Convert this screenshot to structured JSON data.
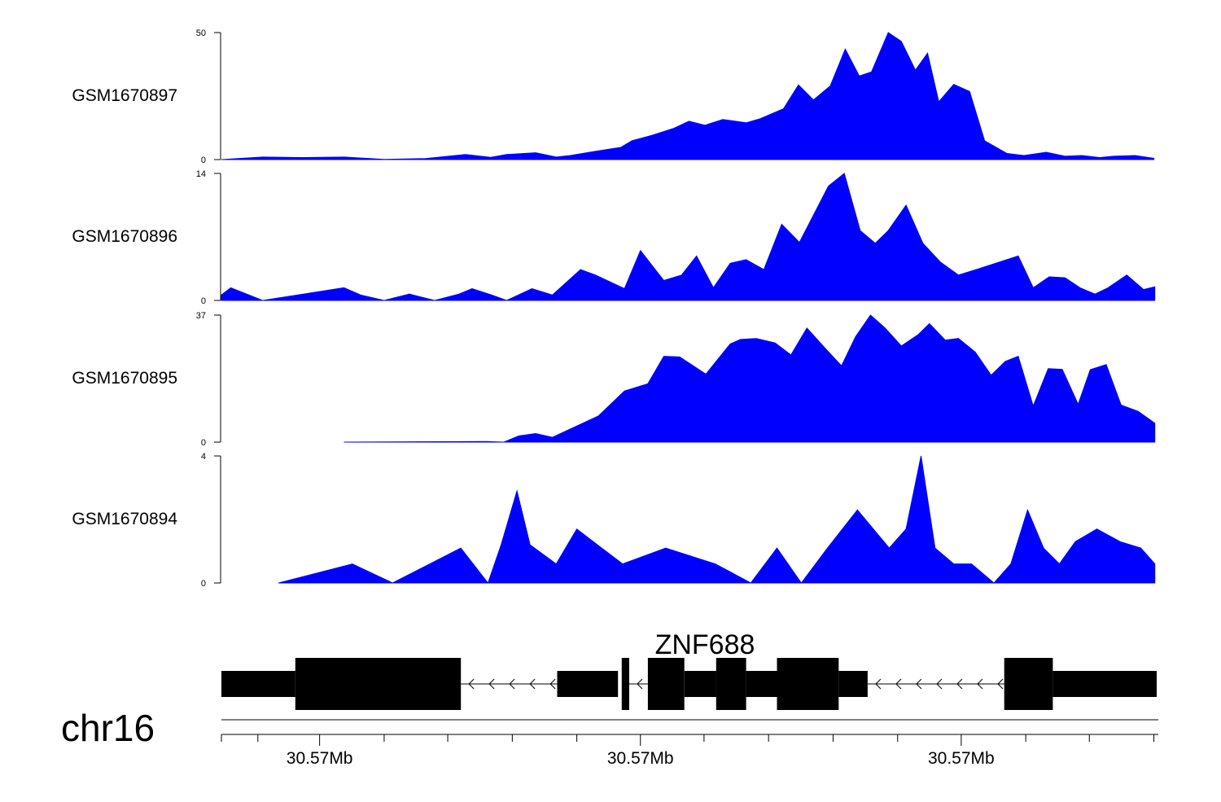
{
  "chart_data": {
    "type": "area",
    "chromosome": "chr16",
    "x_range": [
      0,
      100
    ],
    "fill_color": "#0000ff",
    "gene": {
      "name": "ZNF688",
      "strand": "-",
      "exons": [
        {
          "start": 0.0,
          "end": 7.9,
          "kind": "utr"
        },
        {
          "start": 7.9,
          "end": 25.6,
          "kind": "cds"
        },
        {
          "start": 35.9,
          "end": 42.4,
          "kind": "utr"
        },
        {
          "start": 42.4,
          "end": 43.0,
          "kind": "utr_gap"
        },
        {
          "start": 42.8,
          "end": 43.6,
          "kind": "cds"
        },
        {
          "start": 45.6,
          "end": 49.5,
          "kind": "cds"
        },
        {
          "start": 49.5,
          "end": 52.9,
          "kind": "utr"
        },
        {
          "start": 52.9,
          "end": 56.1,
          "kind": "cds"
        },
        {
          "start": 56.1,
          "end": 59.4,
          "kind": "utr"
        },
        {
          "start": 59.4,
          "end": 66.0,
          "kind": "cds"
        },
        {
          "start": 66.0,
          "end": 69.1,
          "kind": "utr"
        },
        {
          "start": 83.7,
          "end": 88.9,
          "kind": "cds"
        },
        {
          "start": 88.9,
          "end": 100.0,
          "kind": "utr"
        }
      ],
      "introns": [
        {
          "start": 25.6,
          "end": 35.9
        },
        {
          "start": 43.6,
          "end": 45.6
        },
        {
          "start": 69.1,
          "end": 83.7
        }
      ]
    },
    "axis": {
      "ticks_major": [
        {
          "x": 10.5,
          "label": "30.57Mb"
        },
        {
          "x": 44.8,
          "label": "30.57Mb"
        },
        {
          "x": 79.1,
          "label": "30.57Mb"
        }
      ],
      "ticks_minor": [
        0,
        3.9,
        17.4,
        24.2,
        31.1,
        38.0,
        51.6,
        58.5,
        65.4,
        72.3,
        86.0,
        92.8,
        99.7
      ]
    },
    "tracks": [
      {
        "name": "GSM1670897",
        "ymax": 50,
        "ytick_labels": [
          "50",
          "0"
        ],
        "x": [
          0,
          4.4,
          8.7,
          13.1,
          17.4,
          21.8,
          26.1,
          28.8,
          30.5,
          33.6,
          35.8,
          37.3,
          39.9,
          42.7,
          43.9,
          46.0,
          48.3,
          50.0,
          51.7,
          53.6,
          56.1,
          57.6,
          60.1,
          61.7,
          63.3,
          65.1,
          66.7,
          68.2,
          69.5,
          71.3,
          72.7,
          74.2,
          75.5,
          76.7,
          78.3,
          80.0,
          81.6,
          84.0,
          85.8,
          88.2,
          90.2,
          92.0,
          93.9,
          95.4,
          97.7,
          99.7
        ],
        "y": [
          0,
          1.0,
          0.8,
          1.0,
          0.1,
          0.4,
          2.0,
          0.9,
          2.0,
          2.7,
          1.0,
          1.6,
          3.2,
          4.8,
          7.4,
          9.5,
          12.2,
          15.1,
          13.5,
          15.8,
          14.5,
          16.1,
          20.0,
          29.4,
          23.5,
          29.0,
          43.5,
          32.9,
          34.5,
          50.0,
          46.5,
          35.2,
          41.9,
          22.8,
          29.6,
          26.8,
          7.4,
          2.4,
          1.6,
          2.9,
          1.3,
          1.6,
          0.8,
          1.3,
          1.6,
          0.5
        ]
      },
      {
        "name": "GSM1670896",
        "ymax": 14,
        "ytick_labels": [
          "14",
          "0"
        ],
        "x": [
          0,
          1.0,
          4.4,
          13.1,
          14.9,
          17.4,
          20.1,
          22.8,
          25.4,
          26.8,
          28.9,
          30.5,
          33.2,
          35.4,
          38.4,
          40.0,
          43.1,
          44.8,
          47.3,
          49.2,
          50.8,
          52.6,
          54.4,
          56.1,
          58.0,
          59.9,
          61.8,
          64.9,
          66.6,
          68.3,
          69.9,
          71.3,
          73.2,
          75.0,
          76.9,
          78.8,
          81.0,
          85.2,
          86.8,
          88.5,
          90.2,
          91.8,
          93.4,
          94.8,
          96.8,
          98.6,
          99.8
        ],
        "y": [
          0.6,
          1.4,
          0,
          1.4,
          0.6,
          0,
          0.7,
          0,
          0.7,
          1.3,
          0.6,
          0.0,
          1.3,
          0.6,
          3.4,
          2.8,
          1.3,
          5.5,
          2.2,
          2.8,
          4.9,
          1.4,
          4.1,
          4.5,
          3.4,
          8.4,
          6.4,
          12.6,
          14.0,
          7.7,
          6.3,
          7.7,
          10.5,
          6.3,
          4.2,
          2.8,
          3.5,
          4.9,
          1.4,
          2.6,
          2.5,
          1.4,
          0.7,
          1.4,
          2.8,
          1.2,
          1.5
        ]
      },
      {
        "name": "GSM1670895",
        "ymax": 37,
        "ytick_labels": [
          "37",
          "0"
        ],
        "x": [
          13.1,
          28.4,
          30.2,
          31.8,
          33.6,
          35.4,
          40.3,
          43.1,
          45.6,
          47.3,
          49.0,
          51.8,
          54.4,
          55.5,
          57.2,
          59.2,
          60.9,
          62.6,
          64.7,
          66.3,
          67.8,
          69.4,
          71.0,
          72.7,
          74.5,
          75.7,
          77.4,
          78.8,
          80.6,
          82.3,
          83.8,
          85.2,
          86.8,
          88.4,
          89.9,
          91.6,
          92.9,
          94.6,
          96.2,
          98.0,
          99.8
        ],
        "y": [
          0,
          0.2,
          0.0,
          1.8,
          2.5,
          1.4,
          7.6,
          14.9,
          17.0,
          25.0,
          24.8,
          19.8,
          28.6,
          29.9,
          30.2,
          28.9,
          25.4,
          33.2,
          26.9,
          22.2,
          30.7,
          37.0,
          33.1,
          28.0,
          31.3,
          34.5,
          29.7,
          30.2,
          26.2,
          19.5,
          23.5,
          25.0,
          10.5,
          21.4,
          21.2,
          11.0,
          21.1,
          22.6,
          10.8,
          9.0,
          5.5
        ]
      },
      {
        "name": "GSM1670894",
        "ymax": 4,
        "ytick_labels": [
          "4",
          "0"
        ],
        "x": [
          6.1,
          14.0,
          18.3,
          25.6,
          28.5,
          29.9,
          31.6,
          33.0,
          35.8,
          38.0,
          40.2,
          42.9,
          47.5,
          52.8,
          56.6,
          59.4,
          62.0,
          64.8,
          68.0,
          71.4,
          73.2,
          74.8,
          76.3,
          78.3,
          80.2,
          82.6,
          84.4,
          86.2,
          87.9,
          89.6,
          91.3,
          93.6,
          96.1,
          98.3,
          99.8
        ],
        "y": [
          0,
          0.6,
          0,
          1.1,
          0,
          1.2,
          2.9,
          1.2,
          0.6,
          1.7,
          1.2,
          0.6,
          1.1,
          0.6,
          0,
          1.1,
          0,
          1.1,
          2.3,
          1.1,
          1.7,
          4.0,
          1.1,
          0.6,
          0.6,
          0,
          0.6,
          2.3,
          1.1,
          0.6,
          1.3,
          1.7,
          1.3,
          1.1,
          0.6
        ]
      }
    ]
  }
}
